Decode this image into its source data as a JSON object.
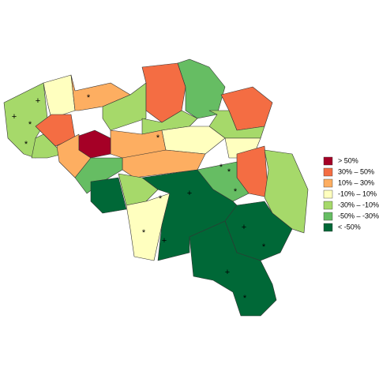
{
  "legend": [
    {
      "label": "> 50%",
      "color": "#a50026"
    },
    {
      "label": "30%  –  50%",
      "color": "#f46d43"
    },
    {
      "label": "10%  –  30%",
      "color": "#fdae61"
    },
    {
      "label": "-10%  –  10%",
      "color": "#ffffbf"
    },
    {
      "label": "-30%  –  -10%",
      "color": "#a6d96a"
    },
    {
      "label": "-50%  –  -30%",
      "color": "#66bd63"
    },
    {
      "label": "< -50%",
      "color": "#006837"
    }
  ],
  "markers": [
    "+",
    "+",
    "*",
    "*",
    "*",
    "*",
    "*",
    "*",
    "*",
    "*",
    "+",
    "+",
    "+",
    "+",
    "*",
    "*",
    "*"
  ]
}
